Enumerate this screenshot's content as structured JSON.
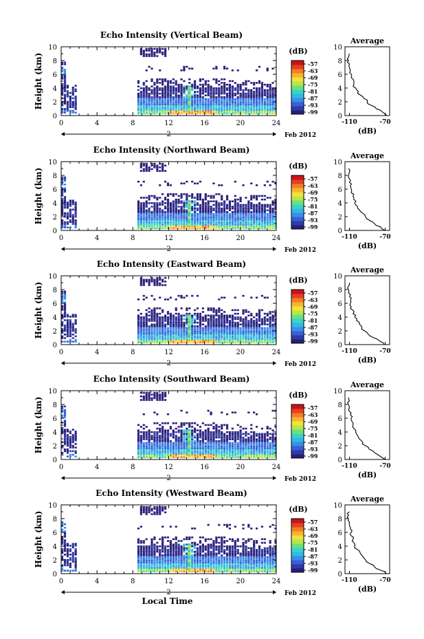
{
  "figure": {
    "panel_titles": [
      "Echo Intensity (Vertical Beam)",
      "Echo Intensity (Northward Beam)",
      "Echo Intensity (Eastward Beam)",
      "Echo Intensity (Southward Beam)",
      "Echo Intensity (Westward Beam)"
    ],
    "ylabel": "Height (km)",
    "xlabel": "Local Time",
    "date_label": "Feb 2012",
    "day_label": "2",
    "colorbar": {
      "unit": "(dB)",
      "tick_labels": [
        "-57",
        "-63",
        "-69",
        "-75",
        "-81",
        "-87",
        "-93",
        "-99"
      ],
      "colors": [
        "#2a1e7a",
        "#2d3ca8",
        "#3a5fd6",
        "#3a8ee8",
        "#33b8e6",
        "#3ad3c8",
        "#6fe07a",
        "#b8e64a",
        "#f2e23a",
        "#f7b52f",
        "#f57d24",
        "#e6401f",
        "#c8141c"
      ]
    },
    "avg_title": "Average",
    "avg_xlabel": "(dB)",
    "avg_xticks": [
      "-110",
      "-70"
    ]
  },
  "chart_data": [
    {
      "type": "heatmap",
      "title": "Echo Intensity (Vertical Beam)",
      "xlabel": "",
      "ylabel": "Height (km)",
      "xlim": [
        0,
        24
      ],
      "ylim": [
        0,
        10
      ],
      "xticks": [
        0,
        4,
        8,
        12,
        16,
        20,
        24
      ],
      "yticks": [
        0,
        2,
        4,
        6,
        8,
        10
      ],
      "colorbar_range": [
        -99,
        -57
      ],
      "average_profile": {
        "xlim": [
          -115,
          -65
        ],
        "heights": [
          0,
          0.5,
          1,
          1.5,
          2,
          2.5,
          3,
          3.5,
          4,
          4.5,
          5,
          5.5,
          6,
          6.5,
          7,
          7.5,
          8,
          8.5,
          9
        ],
        "values": [
          -68,
          -73,
          -80,
          -86,
          -90,
          -94,
          -98,
          -100,
          -103,
          -105,
          -105,
          -108,
          -108,
          -109,
          -110,
          -110,
          -111,
          -111,
          -110
        ]
      }
    },
    {
      "type": "heatmap",
      "title": "Echo Intensity (Northward Beam)",
      "xlabel": "",
      "ylabel": "Height (km)",
      "xlim": [
        0,
        24
      ],
      "ylim": [
        0,
        10
      ],
      "xticks": [
        0,
        4,
        8,
        12,
        16,
        20,
        24
      ],
      "yticks": [
        0,
        2,
        4,
        6,
        8,
        10
      ],
      "colorbar_range": [
        -99,
        -57
      ],
      "average_profile": {
        "xlim": [
          -115,
          -65
        ],
        "heights": [
          0,
          0.5,
          1,
          1.5,
          2,
          2.5,
          3,
          3.5,
          4,
          4.5,
          5,
          5.5,
          6,
          6.5,
          7,
          7.5,
          8,
          8.5,
          9
        ],
        "values": [
          -70,
          -75,
          -82,
          -88,
          -92,
          -95,
          -99,
          -101,
          -104,
          -105,
          -106,
          -108,
          -108,
          -109,
          -110,
          -110,
          -111,
          -110,
          -111
        ]
      }
    },
    {
      "type": "heatmap",
      "title": "Echo Intensity (Eastward Beam)",
      "xlabel": "",
      "ylabel": "Height (km)",
      "xlim": [
        0,
        24
      ],
      "ylim": [
        0,
        10
      ],
      "xticks": [
        0,
        4,
        8,
        12,
        16,
        20,
        24
      ],
      "yticks": [
        0,
        2,
        4,
        6,
        8,
        10
      ],
      "colorbar_range": [
        -99,
        -57
      ],
      "average_profile": {
        "xlim": [
          -115,
          -65
        ],
        "heights": [
          0,
          0.5,
          1,
          1.5,
          2,
          2.5,
          3,
          3.5,
          4,
          4.5,
          5,
          5.5,
          6,
          6.5,
          7,
          7.5,
          8,
          8.5,
          9
        ],
        "values": [
          -71,
          -76,
          -83,
          -89,
          -93,
          -96,
          -99,
          -102,
          -104,
          -106,
          -106,
          -108,
          -109,
          -109,
          -110,
          -111,
          -111,
          -111,
          -110
        ]
      }
    },
    {
      "type": "heatmap",
      "title": "Echo Intensity (Southward Beam)",
      "xlabel": "",
      "ylabel": "Height (km)",
      "xlim": [
        0,
        24
      ],
      "ylim": [
        0,
        10
      ],
      "xticks": [
        0,
        4,
        8,
        12,
        16,
        20,
        24
      ],
      "yticks": [
        0,
        2,
        4,
        6,
        8,
        10
      ],
      "colorbar_range": [
        -99,
        -57
      ],
      "average_profile": {
        "xlim": [
          -115,
          -65
        ],
        "heights": [
          0,
          0.5,
          1,
          1.5,
          2,
          2.5,
          3,
          3.5,
          4,
          4.5,
          5,
          5.5,
          6,
          6.5,
          7,
          7.5,
          8,
          8.5,
          9
        ],
        "values": [
          -70,
          -76,
          -82,
          -88,
          -92,
          -95,
          -99,
          -101,
          -103,
          -105,
          -106,
          -107,
          -108,
          -109,
          -110,
          -110,
          -111,
          -110,
          -111
        ]
      }
    },
    {
      "type": "heatmap",
      "title": "Echo Intensity (Westward Beam)",
      "xlabel": "Local Time",
      "ylabel": "Height (km)",
      "xlim": [
        0,
        24
      ],
      "ylim": [
        0,
        10
      ],
      "xticks": [
        0,
        4,
        8,
        12,
        16,
        20,
        24
      ],
      "yticks": [
        0,
        2,
        4,
        6,
        8,
        10
      ],
      "colorbar_range": [
        -99,
        -57
      ],
      "average_profile": {
        "xlim": [
          -115,
          -65
        ],
        "heights": [
          0,
          0.5,
          1,
          1.5,
          2,
          2.5,
          3,
          3.5,
          4,
          4.5,
          5,
          5.5,
          6,
          6.5,
          7,
          7.5,
          8,
          8.5,
          9
        ],
        "values": [
          -69,
          -75,
          -82,
          -88,
          -92,
          -95,
          -98,
          -101,
          -104,
          -105,
          -106,
          -108,
          -108,
          -109,
          -110,
          -110,
          -111,
          -111,
          -110
        ]
      }
    }
  ]
}
